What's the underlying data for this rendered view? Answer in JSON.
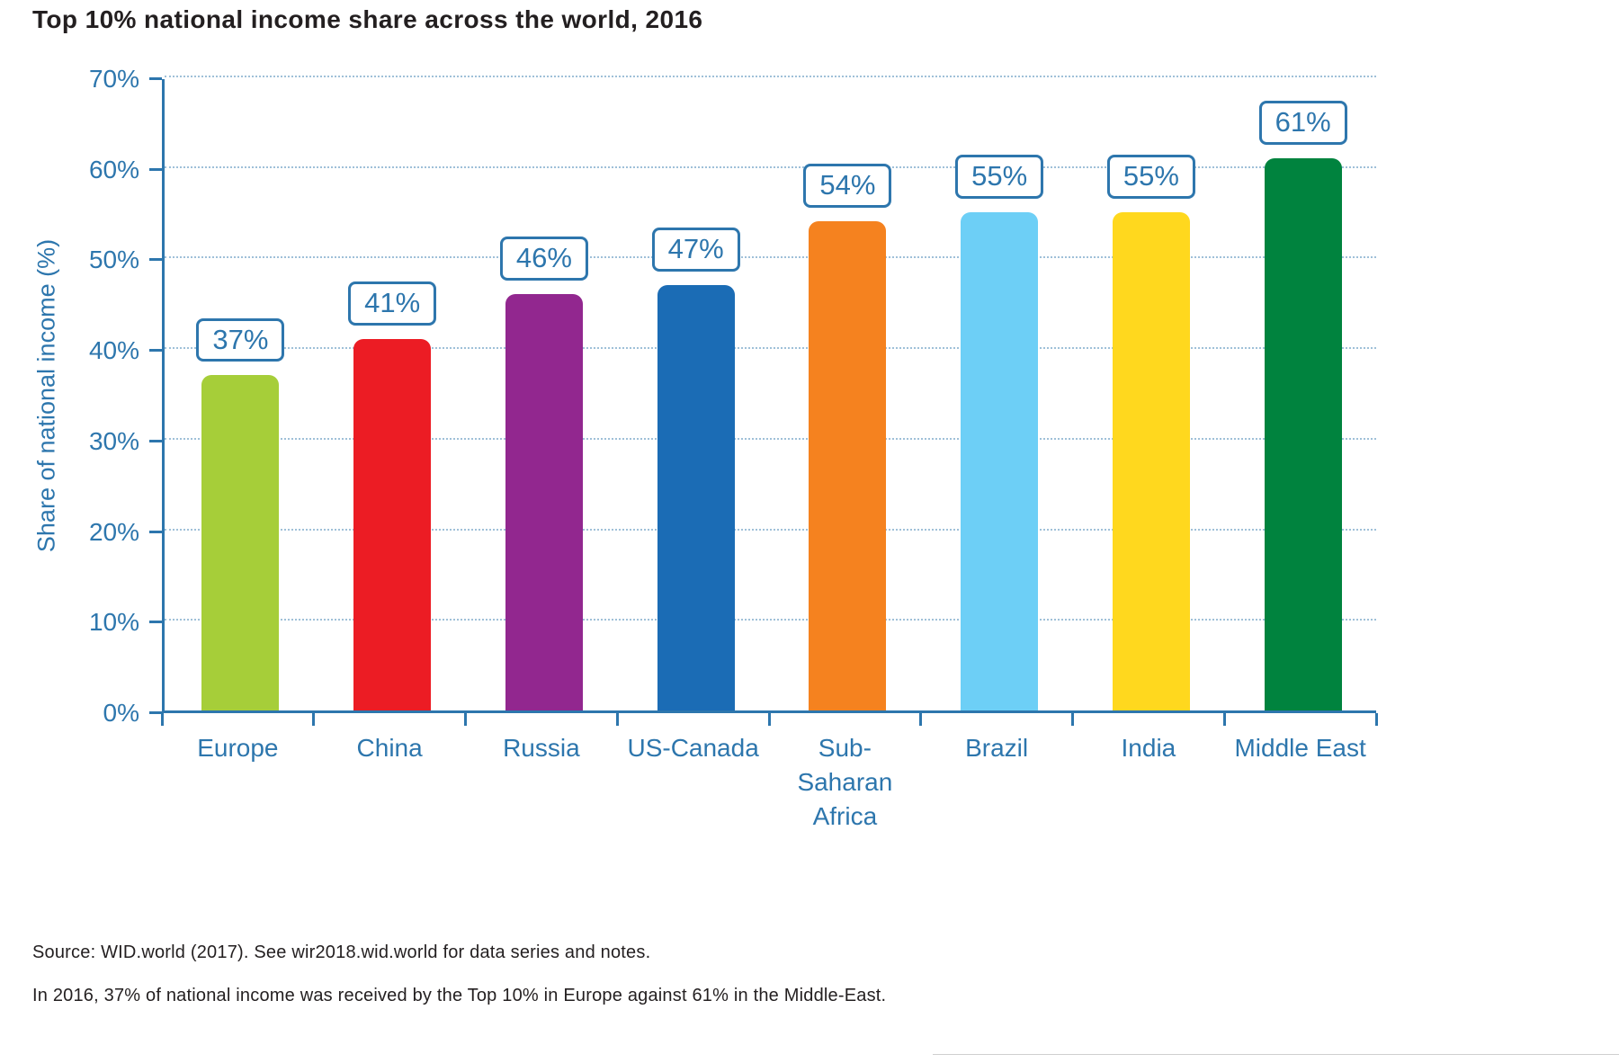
{
  "chart_data": {
    "type": "bar",
    "title": "Top 10% national income share across the world, 2016",
    "ylabel": "Share of national income (%)",
    "xlabel": "",
    "ylim": [
      0,
      70
    ],
    "yticks": [
      0,
      10,
      20,
      30,
      40,
      50,
      60,
      70
    ],
    "ytick_suffix": "%",
    "grid": "horizontal-dotted",
    "legend_position": "none",
    "categories": [
      "Europe",
      "China",
      "Russia",
      "US-Canada",
      "Sub-\nSaharan\nAfrica",
      "Brazil",
      "India",
      "Middle East"
    ],
    "values": [
      37,
      41,
      46,
      47,
      54,
      55,
      55,
      61
    ],
    "value_labels": [
      "37%",
      "41%",
      "46%",
      "47%",
      "54%",
      "55%",
      "55%",
      "61%"
    ],
    "bar_colors": [
      "#a6ce39",
      "#ec1c24",
      "#92278f",
      "#1b6cb5",
      "#f5821f",
      "#6dcff6",
      "#ffd81e",
      "#00833e"
    ]
  },
  "footer": {
    "source": "Source: WID.world (2017). See wir2018.wid.world for data series and notes.",
    "note": "In 2016, 37% of national income was received by the Top 10% in Europe against 61% in the Middle-East."
  },
  "colors": {
    "axis_blue": "#2d76ad",
    "text_blue": "#2d76ad",
    "gridline": "#9fc0d8",
    "title_text": "#231f20",
    "footer_text": "#231f20",
    "background": "#ffffff"
  }
}
